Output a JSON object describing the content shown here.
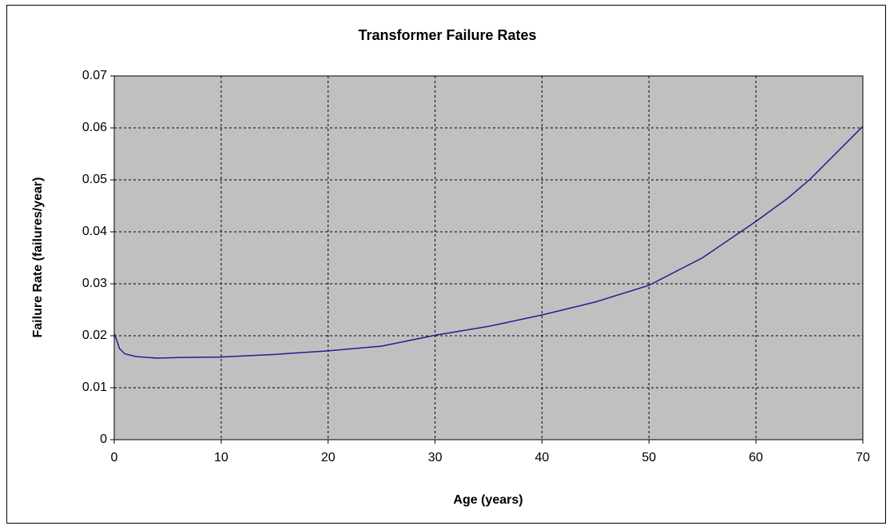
{
  "chart_data": {
    "type": "line",
    "title": "Transformer Failure Rates",
    "x_label": "Age (years)",
    "y_label": "Failure Rate (failures/year)",
    "x": [
      0,
      0.5,
      1,
      2,
      4,
      6,
      10,
      15,
      20,
      25,
      30,
      35,
      40,
      45,
      50,
      55,
      60,
      63,
      65,
      70
    ],
    "series": [
      {
        "name": "Failure Rate",
        "color": "#1f1f8f",
        "values": [
          0.0205,
          0.0175,
          0.0165,
          0.016,
          0.0157,
          0.0158,
          0.0159,
          0.0164,
          0.0171,
          0.018,
          0.0201,
          0.0218,
          0.024,
          0.0265,
          0.0297,
          0.035,
          0.042,
          0.0465,
          0.05,
          0.0603
        ]
      }
    ],
    "xlim": [
      0,
      70
    ],
    "xticks": [
      0,
      10,
      20,
      30,
      40,
      50,
      60,
      70
    ],
    "ylim": [
      0,
      0.07
    ],
    "yticks": [
      0,
      0.01,
      0.02,
      0.03,
      0.04,
      0.05,
      0.06,
      0.07
    ],
    "grid": true,
    "plot_background": "#c0c0c0"
  }
}
